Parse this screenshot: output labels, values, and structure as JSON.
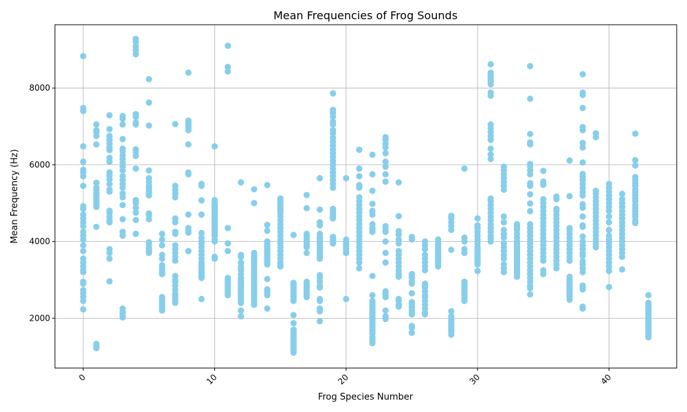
{
  "chart_data": {
    "type": "scatter",
    "title": "Mean Frequencies of Frog Sounds",
    "xlabel": "Frog Species Number",
    "ylabel": "Mean Frequency (Hz)",
    "xlim": [
      -2.15,
      45.15
    ],
    "ylim": [
      700,
      9650
    ],
    "x_ticks": [
      0,
      10,
      20,
      30,
      40
    ],
    "y_ticks": [
      2000,
      4000,
      6000,
      8000
    ],
    "grid": true,
    "point_color": "#87ceeb",
    "points_by_species": [
      {
        "x": 0,
        "y": [
          8830,
          7480,
          7400,
          6480,
          6080,
          5870,
          5800,
          5700,
          5450,
          4920,
          4850,
          4700,
          4600,
          4500,
          4400,
          4250,
          4150,
          4050,
          3900,
          3750,
          3550,
          3450,
          3350,
          3250,
          3200,
          2950,
          2900,
          2730,
          2650,
          2550,
          2450,
          2230
        ]
      },
      {
        "x": 1,
        "y": [
          7050,
          6900,
          6850,
          6750,
          6530,
          5530,
          5400,
          5330,
          5250,
          5200,
          5150,
          5100,
          5050,
          5000,
          4950,
          4900,
          4380,
          1330,
          1290,
          1250,
          1220
        ]
      },
      {
        "x": 2,
        "y": [
          7290,
          6930,
          6750,
          6650,
          6550,
          6450,
          6380,
          6180,
          6080,
          5800,
          5720,
          5620,
          5500,
          5350,
          5300,
          4800,
          4750,
          4650,
          4550,
          4500,
          3800,
          3700,
          3550,
          2960
        ]
      },
      {
        "x": 3,
        "y": [
          7270,
          7200,
          7050,
          6670,
          6420,
          6350,
          6250,
          6150,
          6050,
          5950,
          5850,
          5700,
          5600,
          5500,
          5400,
          5250,
          5150,
          4950,
          4580,
          4250,
          4150,
          2250,
          2180,
          2120,
          2060,
          2020
        ]
      },
      {
        "x": 4,
        "y": [
          9280,
          9200,
          9080,
          8980,
          8880,
          7320,
          7250,
          7100,
          7050,
          6400,
          6330,
          6230,
          5900,
          5080,
          5000,
          4880,
          4750,
          4560,
          4200
        ]
      },
      {
        "x": 5,
        "y": [
          8230,
          7620,
          7020,
          5850,
          5650,
          5550,
          5450,
          5400,
          5350,
          5300,
          5250,
          5200,
          4730,
          4680,
          4580,
          3980,
          3900,
          3820,
          3750,
          3700
        ]
      },
      {
        "x": 6,
        "y": [
          4200,
          4050,
          3900,
          3650,
          3550,
          3380,
          3300,
          3250,
          3200,
          3150,
          2550,
          2500,
          2450,
          2400,
          2350,
          2300,
          2250,
          2200
        ]
      },
      {
        "x": 7,
        "y": [
          7060,
          5450,
          5350,
          5250,
          5150,
          4600,
          4500,
          4250,
          4200,
          3900,
          3800,
          3700,
          3600,
          3500,
          3100,
          3000,
          2950,
          2850,
          2750,
          2650,
          2600,
          2550,
          2500,
          2450,
          2400
        ]
      },
      {
        "x": 8,
        "y": [
          8400,
          7150,
          7100,
          7050,
          7000,
          6950,
          6900,
          6530,
          5800,
          5750,
          4700,
          4350,
          4280,
          4230,
          3750
        ]
      },
      {
        "x": 9,
        "y": [
          5500,
          5450,
          5070,
          4700,
          4220,
          4100,
          4000,
          3950,
          3850,
          3750,
          3650,
          3550,
          3450,
          3400,
          3350,
          3300,
          3250,
          3200,
          3150,
          3100,
          3050,
          2500
        ]
      },
      {
        "x": 10,
        "y": [
          6480,
          5080,
          5000,
          4950,
          4900,
          4850,
          4800,
          4750,
          4700,
          4650,
          4600,
          4550,
          4500,
          4450,
          4400,
          4350,
          4300,
          4250,
          4200,
          4150,
          4050,
          4000,
          3600,
          3550
        ]
      },
      {
        "x": 11,
        "y": [
          9100,
          8550,
          8430,
          4350,
          3950,
          3750,
          3050,
          3000,
          2950,
          2900,
          2850,
          2800,
          2750,
          2700,
          2650,
          2600
        ]
      },
      {
        "x": 12,
        "y": [
          5540,
          3650,
          3600,
          3450,
          3350,
          3300,
          3250,
          3150,
          3050,
          3000,
          2950,
          2900,
          2850,
          2800,
          2750,
          2700,
          2650,
          2600,
          2550,
          2500,
          2450,
          2400,
          2200,
          2050
        ]
      },
      {
        "x": 13,
        "y": [
          5360,
          5000,
          3700,
          3650,
          3600,
          3550,
          3500,
          3450,
          3400,
          3350,
          3300,
          3250,
          3200,
          3150,
          3100,
          3050,
          3000,
          2950,
          2900,
          2850,
          2800,
          2750,
          2700,
          2650,
          2600,
          2550,
          2500,
          2450,
          2400,
          2350
        ]
      },
      {
        "x": 14,
        "y": [
          5470,
          4430,
          4280,
          4000,
          3950,
          3900,
          3850,
          3800,
          3750,
          3700,
          3650,
          3600,
          3550,
          3500,
          3450,
          3400,
          3020,
          2750,
          2700,
          2650,
          2600,
          2250
        ]
      },
      {
        "x": 15,
        "y": [
          5120,
          5050,
          5000,
          4950,
          4900,
          4850,
          4800,
          4750,
          4650,
          4550,
          4450,
          4350,
          4250,
          4150,
          4050,
          3950,
          3850,
          3750,
          3650,
          3550,
          3450,
          3400,
          3350
        ]
      },
      {
        "x": 16,
        "y": [
          4170,
          2920,
          2880,
          2850,
          2800,
          2750,
          2700,
          2650,
          2600,
          2550,
          2500,
          2450,
          2080,
          1870,
          1700,
          1650,
          1600,
          1550,
          1500,
          1450,
          1400,
          1350,
          1300,
          1250,
          1200,
          1150,
          1100
        ]
      },
      {
        "x": 17,
        "y": [
          5210,
          4870,
          4200,
          4150,
          4100,
          4050,
          4000,
          3950,
          3900,
          3850,
          3700,
          2950,
          2900,
          2850,
          2800,
          2750,
          2700,
          2650,
          2600,
          2550
        ]
      },
      {
        "x": 18,
        "y": [
          5650,
          4830,
          4500,
          4420,
          4200,
          4100,
          4050,
          4000,
          3950,
          3900,
          3850,
          3800,
          3750,
          3700,
          3650,
          3600,
          3550,
          3120,
          3050,
          2950,
          2850,
          2800,
          2500,
          2450,
          2250,
          2180,
          1920
        ]
      },
      {
        "x": 19,
        "y": [
          7860,
          7430,
          7350,
          7250,
          7120,
          7050,
          6900,
          6820,
          6700,
          6600,
          6500,
          6400,
          6300,
          6200,
          6100,
          6000,
          5900,
          5800,
          5700,
          5600,
          5500,
          5400,
          4850,
          4800,
          4750,
          4700,
          4650,
          4600,
          4120,
          4050,
          4000,
          3950
        ]
      },
      {
        "x": 20,
        "y": [
          5650,
          4050,
          4000,
          3950,
          3900,
          3850,
          3800,
          3750,
          3700,
          2500
        ]
      },
      {
        "x": 21,
        "y": [
          6390,
          5900,
          5700,
          5470,
          5400,
          5150,
          5050,
          4950,
          4850,
          4750,
          4650,
          4550,
          4450,
          4350,
          4250,
          4150,
          4050,
          3950,
          3850,
          3750,
          3650,
          3550,
          3450,
          3300
        ]
      },
      {
        "x": 22,
        "y": [
          6260,
          5750,
          5320,
          4980,
          4800,
          4700,
          4450,
          4350,
          4300,
          4250,
          3100,
          2600,
          2450,
          2400,
          2350,
          2300,
          2250,
          2200,
          2150,
          2100,
          2050,
          2000,
          1950,
          1900,
          1850,
          1800,
          1750,
          1700,
          1650,
          1600,
          1500,
          1450,
          1400,
          1350
        ]
      },
      {
        "x": 23,
        "y": [
          6720,
          6650,
          6550,
          6450,
          6300,
          6080,
          5950,
          5750,
          5560,
          4400,
          4320,
          4250,
          4000,
          3700,
          3450,
          2700,
          2650,
          2600,
          2550,
          2200,
          2050,
          1980
        ]
      },
      {
        "x": 24,
        "y": [
          5540,
          4660,
          4270,
          4180,
          4050,
          3950,
          3750,
          3650,
          3550,
          3450,
          3350,
          3250,
          3150,
          3080,
          2500,
          2450,
          2350,
          2300
        ]
      },
      {
        "x": 25,
        "y": [
          4120,
          4050,
          3150,
          3100,
          3050,
          2950,
          2900,
          2650,
          2420,
          2380,
          2320,
          2280,
          2200,
          2150,
          2100,
          1800,
          1750,
          1620
        ]
      },
      {
        "x": 26,
        "y": [
          4000,
          3900,
          3800,
          3650,
          3550,
          3450,
          3350,
          3250,
          2900,
          2850,
          2800,
          2700,
          2600,
          2550,
          2450,
          2350,
          2250,
          2150,
          2100
        ]
      },
      {
        "x": 27,
        "y": [
          4050,
          3950,
          3900,
          3850,
          3800,
          3750,
          3700,
          3650,
          3600,
          3550,
          3500,
          3450,
          3400,
          3350
        ]
      },
      {
        "x": 28,
        "y": [
          4670,
          4600,
          4500,
          4400,
          4300,
          3780,
          2180,
          2050,
          1950,
          1900,
          1850,
          1800,
          1750,
          1700,
          1650,
          1570
        ]
      },
      {
        "x": 29,
        "y": [
          5900,
          4100,
          4000,
          3800,
          3700,
          2950,
          2900,
          2850,
          2800,
          2750,
          2700,
          2650,
          2600,
          2550,
          2500,
          2450
        ]
      },
      {
        "x": 30,
        "y": [
          4600,
          4420,
          4350,
          4250,
          4150,
          4050,
          3950,
          3850,
          3800,
          3750,
          3700,
          3650,
          3600,
          3550,
          3500,
          3450,
          3400,
          3230
        ]
      },
      {
        "x": 31,
        "y": [
          8620,
          8400,
          8330,
          8250,
          8180,
          8100,
          7880,
          7800,
          7050,
          6950,
          6850,
          6750,
          6650,
          6420,
          6270,
          6150,
          5120,
          5050,
          4950,
          4850,
          4750,
          4650,
          4550,
          4450,
          4350,
          4250,
          4150,
          4080,
          4000
        ]
      },
      {
        "x": 32,
        "y": [
          5950,
          5850,
          5750,
          5650,
          5550,
          5450,
          5350,
          4650,
          4500,
          4300,
          4200,
          4100,
          3950,
          3850,
          3750,
          3650,
          3550,
          3400,
          3300,
          3200
        ]
      },
      {
        "x": 33,
        "y": [
          4450,
          4400,
          4350,
          4300,
          4200,
          4100,
          4000,
          3950,
          3900,
          3850,
          3800,
          3750,
          3700,
          3650,
          3600,
          3550,
          3500,
          3450,
          3400,
          3350,
          3300,
          3250,
          3200,
          3150,
          3080
        ]
      },
      {
        "x": 34,
        "y": [
          8570,
          7720,
          6800,
          6580,
          6530,
          6020,
          5950,
          5850,
          5750,
          5520,
          5450,
          5230,
          4990,
          4790,
          4450,
          4350,
          4250,
          4150,
          4050,
          3950,
          3850,
          3750,
          3650,
          3550,
          3450,
          3350,
          3250,
          3150,
          3050,
          2950,
          2850,
          2780,
          2620
        ]
      },
      {
        "x": 35,
        "y": [
          5840,
          5560,
          5480,
          5100,
          5000,
          4900,
          4800,
          4700,
          4600,
          4500,
          4400,
          4300,
          4200,
          4100,
          4000,
          3900,
          3800,
          3700,
          3600,
          3500,
          3250,
          3150
        ]
      },
      {
        "x": 36,
        "y": [
          5170,
          5100,
          4850,
          4800,
          4700,
          4600,
          4500,
          4400,
          4300,
          4200,
          4100,
          4000,
          3900,
          3800,
          3700,
          3600,
          3500,
          3400,
          3300
        ]
      },
      {
        "x": 37,
        "y": [
          6110,
          5180,
          4350,
          4300,
          4200,
          4100,
          4000,
          3900,
          3800,
          3700,
          3600,
          3500,
          3080,
          3000,
          2950,
          2900,
          2850,
          2800,
          2750,
          2700,
          2650,
          2600,
          2550,
          2480
        ]
      },
      {
        "x": 38,
        "y": [
          8360,
          7880,
          7820,
          7480,
          6980,
          6900,
          6570,
          6450,
          6060,
          5760,
          5680,
          5600,
          5500,
          5400,
          5300,
          5200,
          4970,
          4880,
          4650,
          4420,
          4380,
          4130,
          4000,
          3900,
          3800,
          3700,
          3620,
          3480,
          3400,
          3300,
          3200,
          2850,
          2800,
          2750,
          2300,
          2250
        ]
      },
      {
        "x": 39,
        "y": [
          6820,
          6720,
          5320,
          5250,
          5150,
          5050,
          4950,
          4850,
          4750,
          4650,
          4550,
          4450,
          4350,
          4250,
          4150,
          4050,
          3950,
          3850
        ]
      },
      {
        "x": 40,
        "y": [
          5500,
          5400,
          5300,
          5200,
          5100,
          5000,
          4900,
          4800,
          4650,
          4500,
          4300,
          4150,
          4050,
          3950,
          3850,
          3750,
          3650,
          3550,
          3450,
          3350,
          3230,
          2810
        ]
      },
      {
        "x": 41,
        "y": [
          5240,
          5100,
          5000,
          4900,
          4800,
          4700,
          4600,
          4500,
          4400,
          4300,
          4200,
          4100,
          4000,
          3900,
          3800,
          3700,
          3600,
          3270
        ]
      },
      {
        "x": 42,
        "y": [
          6810,
          6120,
          5980,
          5680,
          5600,
          5520,
          5450,
          5350,
          5280,
          5200,
          5120,
          5050,
          4950,
          4870,
          4800,
          4720,
          4650,
          4550,
          4480
        ]
      },
      {
        "x": 43,
        "y": [
          2600,
          2400,
          2350,
          2300,
          2250,
          2200,
          2150,
          2100,
          2050,
          2000,
          1950,
          1900,
          1850,
          1800,
          1750,
          1700,
          1650,
          1600,
          1550,
          1500
        ]
      }
    ]
  }
}
